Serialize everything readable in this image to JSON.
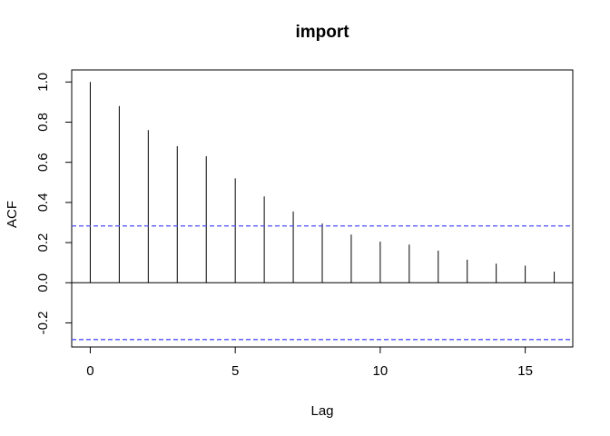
{
  "chart_data": {
    "type": "bar",
    "title": "import",
    "xlabel": "Lag",
    "ylabel": "ACF",
    "x": [
      0,
      1,
      2,
      3,
      4,
      5,
      6,
      7,
      8,
      9,
      10,
      11,
      12,
      13,
      14,
      15,
      16
    ],
    "values": [
      1.0,
      0.88,
      0.76,
      0.68,
      0.63,
      0.52,
      0.43,
      0.355,
      0.295,
      0.24,
      0.205,
      0.19,
      0.16,
      0.115,
      0.095,
      0.085,
      0.055
    ],
    "xlim": [
      -0.64,
      16.64
    ],
    "ylim": [
      -0.32,
      1.06
    ],
    "xticks": [
      0,
      5,
      10,
      15
    ],
    "yticks": [
      -0.2,
      0.0,
      0.2,
      0.4,
      0.6,
      0.8,
      1.0
    ],
    "ytick_labels": [
      "-0.2",
      "0.0",
      "0.2",
      "0.4",
      "0.6",
      "0.8",
      "1.0"
    ],
    "confidence_bounds": [
      0.283,
      -0.283
    ],
    "zero_line": 0,
    "grid": false,
    "colors": {
      "bars": "#000000",
      "confidence": "#4f4fff",
      "frame": "#000000"
    }
  }
}
